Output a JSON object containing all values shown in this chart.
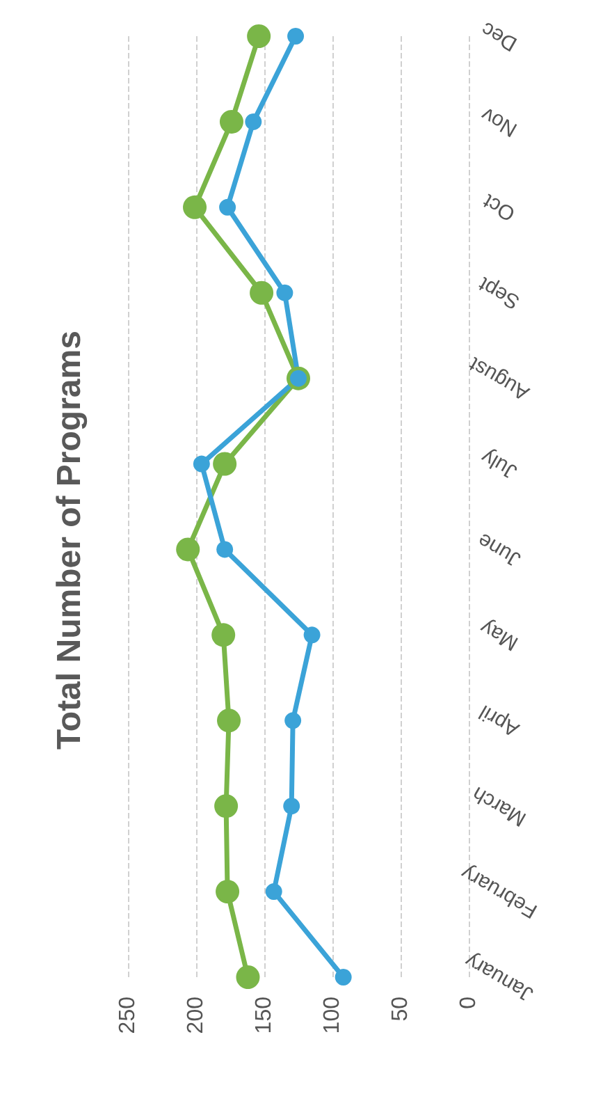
{
  "chart_data": {
    "type": "line",
    "title": "Total Number of Programs",
    "orientation": "horizontal",
    "categories": [
      "Dec",
      "Nov",
      "Oct",
      "Sept",
      "August",
      "July",
      "June",
      "May",
      "April",
      "March",
      "February",
      "January"
    ],
    "series": [
      {
        "color": "#7ab648",
        "values": [
          154,
          174,
          201,
          152,
          125,
          179,
          206,
          180,
          176,
          178,
          177,
          162
        ]
      },
      {
        "color": "#3ba3d8",
        "values": [
          127,
          158,
          177,
          135,
          125,
          196,
          179,
          115,
          129,
          130,
          143,
          92
        ]
      }
    ],
    "xlim": [
      250,
      0
    ],
    "xticks": [
      250,
      200,
      150,
      100,
      50,
      0
    ],
    "grid": "x",
    "marker": "circle",
    "line_style": "solid"
  }
}
